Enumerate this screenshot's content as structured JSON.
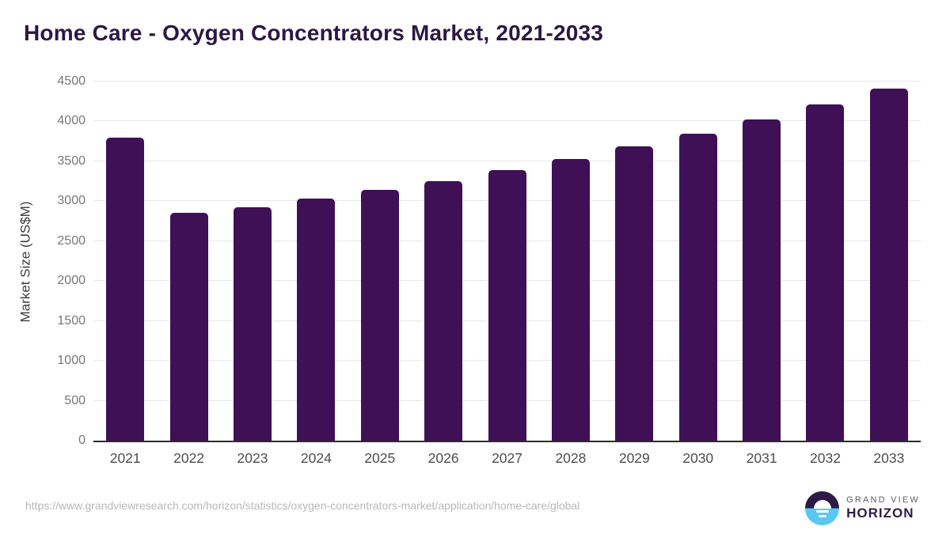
{
  "header": {
    "title": "Home Care - Oxygen Concentrators Market, 2021-2033"
  },
  "chart_data": {
    "type": "bar",
    "title": "Home Care - Oxygen Concentrators Market, 2021-2033",
    "categories": [
      "2021",
      "2022",
      "2023",
      "2024",
      "2025",
      "2026",
      "2027",
      "2028",
      "2029",
      "2030",
      "2031",
      "2032",
      "2033"
    ],
    "values": [
      3800,
      2855,
      2920,
      3030,
      3140,
      3255,
      3390,
      3530,
      3690,
      3850,
      4020,
      4215,
      4415
    ],
    "xlabel": "",
    "ylabel": "Market Size (US$M)",
    "ylim": [
      0,
      4500
    ],
    "yticks": [
      0,
      500,
      1000,
      1500,
      2000,
      2500,
      3000,
      3500,
      4000,
      4500
    ],
    "grid": true,
    "legend": false,
    "bar_color": "#3f1055",
    "title_color": "#2c1745",
    "gridline_color": "#e8e8e8",
    "axis_line_color": "#2b2b2b"
  },
  "footer": {
    "source_url": "https://www.grandviewresearch.com/horizon/statistics/oxygen-concentrators-market/application/home-care/global",
    "logo": {
      "top_text": "GRAND VIEW",
      "bottom_text": "HORIZON",
      "circle_top_color": "#2e1a47",
      "circle_bottom_color": "#58c7f3"
    }
  }
}
